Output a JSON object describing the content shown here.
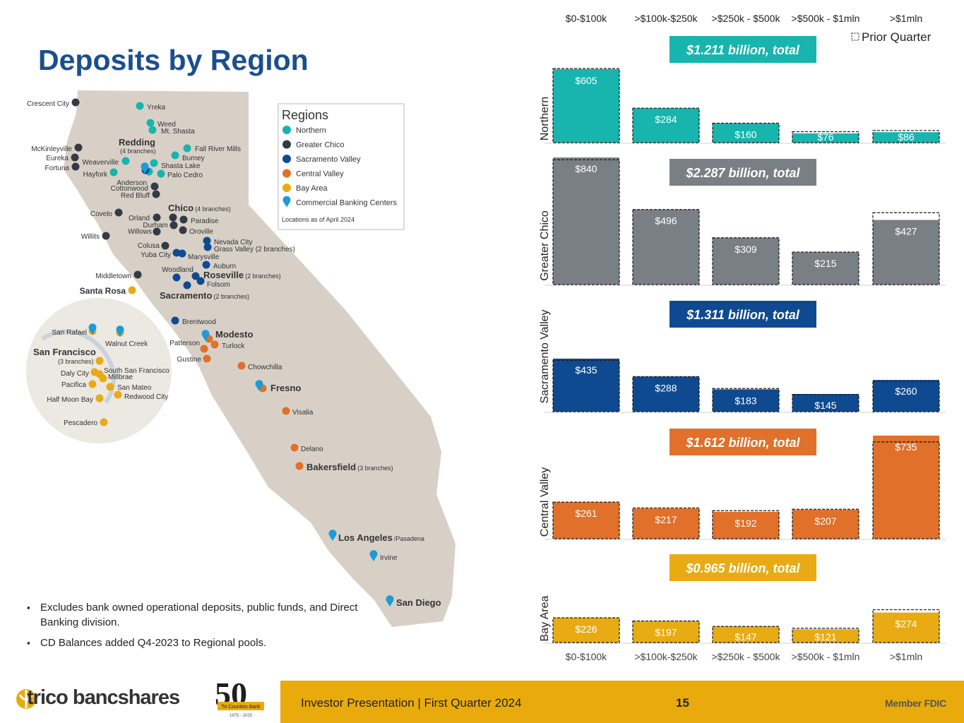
{
  "title": "Deposits by Region",
  "legend": {
    "title": "Regions",
    "items": [
      {
        "label": "Northern",
        "color": "#17b5ad",
        "shape": "dot"
      },
      {
        "label": "Greater Chico",
        "color": "#333b44",
        "shape": "dot"
      },
      {
        "label": "Sacramento Valley",
        "color": "#0f4a91",
        "shape": "dot"
      },
      {
        "label": "Central Valley",
        "color": "#e0702a",
        "shape": "dot"
      },
      {
        "label": "Bay Area",
        "color": "#e8ab13",
        "shape": "dot"
      },
      {
        "label": "Commercial Banking Centers",
        "color": "#1c9bd7",
        "shape": "pin"
      }
    ],
    "note": "Locations as of April 2024"
  },
  "map_labels": {
    "northern": [
      "Yreka",
      "Weed",
      "Mt. Shasta",
      "Weaverville",
      "Hayfork",
      "Fall River Mills",
      "Burney",
      "Shasta Lake",
      "Palo Cedro",
      "Anderson"
    ],
    "greater_chico": [
      "Crescent City",
      "McKinleyville",
      "Eureka",
      "Fortuna",
      "Cottonwood",
      "Red Bluff",
      "Covelo",
      "Orland",
      "Durham",
      "Willows",
      "Paradise",
      "Oroville",
      "Willits",
      "Colusa",
      "Middletown"
    ],
    "sacramento_valley": [
      "Nevada City",
      "Grass Valley (2 branches)",
      "Yuba City",
      "Marysville",
      "Auburn",
      "Woodland",
      "Folsom",
      "Brentwood"
    ],
    "central_valley": [
      "Patterson",
      "Turlock",
      "Gustine",
      "Chowchilla",
      "Visalia",
      "Delano"
    ],
    "bay_area": [
      "Santa Rosa",
      "San Rafael",
      "Walnut Creek",
      "San Francisco",
      "(3 branches)",
      "Daly City",
      "South San Francisco",
      "Millbrae",
      "Pacifica",
      "San Mateo",
      "Half Moon Bay",
      "Redwood City",
      "Pescadero"
    ],
    "cities": [
      {
        "name": "Redding",
        "suffix": "(4 branches)"
      },
      {
        "name": "Chico",
        "suffix": "(4 branches)"
      },
      {
        "name": "Roseville",
        "suffix": "(2 branches)"
      },
      {
        "name": "Sacramento",
        "suffix": "(2 branches)"
      },
      {
        "name": "Modesto",
        "suffix": ""
      },
      {
        "name": "Fresno",
        "suffix": ""
      },
      {
        "name": "Bakersfield",
        "suffix": "(3 branches)"
      },
      {
        "name": "Los Angeles",
        "suffix": "/Pasadena"
      },
      {
        "name": "San Diego",
        "suffix": ""
      }
    ],
    "irvine": "Irvine"
  },
  "notes": [
    "Excludes bank owned operational deposits, public funds, and Direct Banking division.",
    "CD Balances added Q4-2023 to Regional pools."
  ],
  "chart_data": {
    "type": "bar",
    "categories": [
      "$0-$100k",
      ">$100k-$250k",
      ">$250k - $500k",
      ">$500k - $1mln",
      ">$1mln"
    ],
    "legend": "Prior Quarter",
    "legend_placement": "top-right",
    "panels": [
      {
        "name": "Northern",
        "total_label": "$1.211 billion, total",
        "color": "#17b5ad",
        "values": [
          605,
          284,
          160,
          76,
          86
        ],
        "value_labels": [
          "$605",
          "$284",
          "$160",
          "$76",
          "$86"
        ],
        "prior_values": [
          610,
          284,
          160,
          90,
          100
        ],
        "ylim": [
          0,
          640
        ]
      },
      {
        "name": "Greater Chico",
        "total_label": "$2.287 billion, total",
        "color": "#7a7f86",
        "values": [
          840,
          496,
          309,
          215,
          427
        ],
        "value_labels": [
          "$840",
          "$496",
          "$309",
          "$215",
          "$427"
        ],
        "prior_values": [
          825,
          496,
          309,
          215,
          475
        ],
        "ylim": [
          0,
          840
        ]
      },
      {
        "name": "Sacramento Valley",
        "total_label": "$1.311 billion, total",
        "color": "#0f4a91",
        "values": [
          435,
          288,
          183,
          145,
          260
        ],
        "value_labels": [
          "$435",
          "$288",
          "$183",
          "$145",
          "$260"
        ],
        "prior_values": [
          420,
          288,
          190,
          140,
          250
        ],
        "ylim": [
          0,
          510
        ]
      },
      {
        "name": "Central Valley",
        "total_label": "$1.612 billion, total",
        "color": "#e0702a",
        "values": [
          261,
          217,
          192,
          207,
          735
        ],
        "value_labels": [
          "$261",
          "$217",
          "$192",
          "$207",
          "$735"
        ],
        "prior_values": [
          261,
          220,
          200,
          210,
          690
        ],
        "ylim": [
          0,
          760
        ]
      },
      {
        "name": "Bay Area",
        "total_label": "$0.965 billion, total",
        "color": "#e8ab13",
        "values": [
          226,
          197,
          147,
          121,
          274
        ],
        "value_labels": [
          "$226",
          "$197",
          "$147",
          "$121",
          "$274"
        ],
        "prior_values": [
          226,
          197,
          147,
          130,
          300
        ],
        "ylim": [
          0,
          310
        ]
      }
    ]
  },
  "footer": {
    "company": "trico bancshares",
    "anniversary_number": "50",
    "anniversary_text": "Tri Counties Bank",
    "anniversary_years": "1975 - 2025",
    "presentation": "Investor Presentation  |  First Quarter 2024",
    "page": "15",
    "member": "Member FDIC"
  }
}
